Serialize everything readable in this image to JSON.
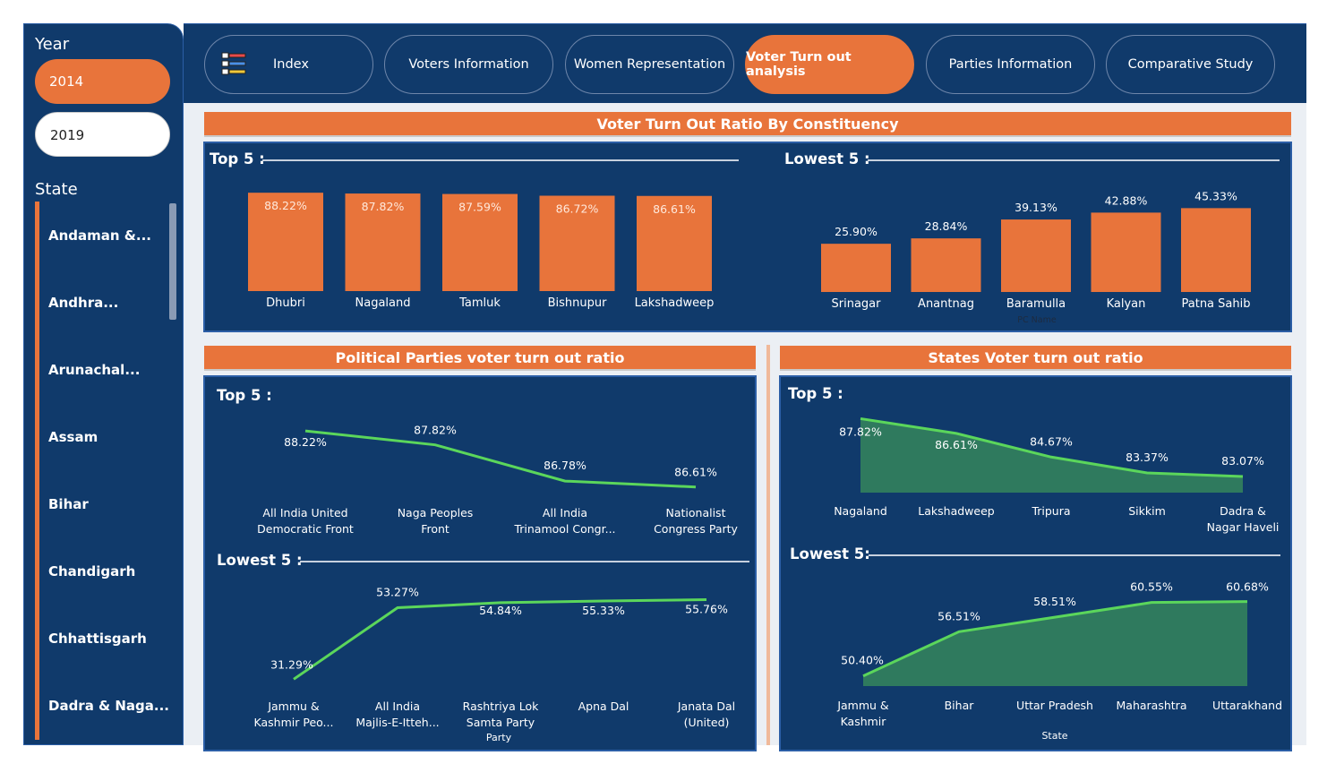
{
  "sidebar": {
    "year_title": "Year",
    "years": [
      "2014",
      "2019"
    ],
    "selected_year": "2014",
    "state_title": "State",
    "states": [
      "Andaman &...",
      "Andhra...",
      "Arunachal...",
      "Assam",
      "Bihar",
      "Chandigarh",
      "Chhattisgarh",
      "Dadra & Naga..."
    ]
  },
  "nav": {
    "tabs": [
      "Index",
      "Voters Information",
      "Women Representation",
      "Voter Turn out analysis",
      "Parties Information",
      "Comparative Study"
    ],
    "active_tab": "Voter Turn out analysis"
  },
  "constituency": {
    "header": "Voter Turn Out Ratio By Constituency",
    "top_label": "Top 5 :",
    "lowest_label": "Lowest 5 :",
    "x_axis_label": "PC Name"
  },
  "parties": {
    "header": "Political Parties voter turn out ratio",
    "top_label": "Top 5 :",
    "lowest_label": "Lowest 5 :",
    "x_axis_label": "Party"
  },
  "states": {
    "header": "States Voter turn out ratio",
    "top_label": "Top 5 :",
    "lowest_label": "Lowest 5:",
    "x_axis_label": "State"
  },
  "colors": {
    "navy": "#103a6b",
    "orange": "#e8743b",
    "green_line": "#5bd65b",
    "green_fill": "#2f7a5e"
  },
  "chart_data": [
    {
      "id": "constituency-top5",
      "type": "bar",
      "categories": [
        "Dhubri",
        "Nagaland",
        "Tamluk",
        "Bishnupur",
        "Lakshadweep"
      ],
      "values": [
        88.22,
        87.82,
        87.59,
        86.72,
        86.61
      ],
      "labels": [
        "88.22%",
        "87.82%",
        "87.59%",
        "86.72%",
        "86.61%"
      ]
    },
    {
      "id": "constituency-lowest5",
      "type": "bar",
      "categories": [
        "Srinagar",
        "Anantnag",
        "Baramulla",
        "Kalyan",
        "Patna Sahib"
      ],
      "values": [
        25.9,
        28.84,
        39.13,
        42.88,
        45.33
      ],
      "labels": [
        "25.90%",
        "28.84%",
        "39.13%",
        "42.88%",
        "45.33%"
      ],
      "xlabel": "PC Name"
    },
    {
      "id": "parties-top5",
      "type": "line",
      "categories": [
        [
          "All India United",
          "Democratic Front"
        ],
        [
          "Naga Peoples",
          "Front"
        ],
        [
          "All India",
          "Trinamool Congr..."
        ],
        [
          "Nationalist",
          "Congress Party"
        ]
      ],
      "values": [
        88.22,
        87.82,
        86.78,
        86.61
      ],
      "labels": [
        "88.22%",
        "87.82%",
        "86.78%",
        "86.61%"
      ]
    },
    {
      "id": "parties-lowest5",
      "type": "line",
      "categories": [
        [
          "Jammu &",
          "Kashmir Peo..."
        ],
        [
          "All India",
          "Majlis-E-Itteh..."
        ],
        [
          "Rashtriya Lok",
          "Samta Party"
        ],
        [
          "Apna Dal"
        ],
        [
          "Janata Dal",
          "(United)"
        ]
      ],
      "values": [
        31.29,
        53.27,
        54.84,
        55.33,
        55.76
      ],
      "labels": [
        "31.29%",
        "53.27%",
        "54.84%",
        "55.33%",
        "55.76%"
      ],
      "xlabel": "Party"
    },
    {
      "id": "states-top5",
      "type": "area",
      "categories": [
        [
          "Nagaland"
        ],
        [
          "Lakshadweep"
        ],
        [
          "Tripura"
        ],
        [
          "Sikkim"
        ],
        [
          "Dadra &",
          "Nagar Haveli"
        ]
      ],
      "values": [
        87.82,
        86.61,
        84.67,
        83.37,
        83.07
      ],
      "labels": [
        "87.82%",
        "86.61%",
        "84.67%",
        "83.37%",
        "83.07%"
      ]
    },
    {
      "id": "states-lowest5",
      "type": "area",
      "categories": [
        [
          "Jammu &",
          "Kashmir"
        ],
        [
          "Bihar"
        ],
        [
          "Uttar Pradesh"
        ],
        [
          "Maharashtra"
        ],
        [
          "Uttarakhand"
        ]
      ],
      "values": [
        50.4,
        56.51,
        58.51,
        60.55,
        60.68
      ],
      "labels": [
        "50.40%",
        "56.51%",
        "58.51%",
        "60.55%",
        "60.68%"
      ],
      "xlabel": "State"
    }
  ]
}
